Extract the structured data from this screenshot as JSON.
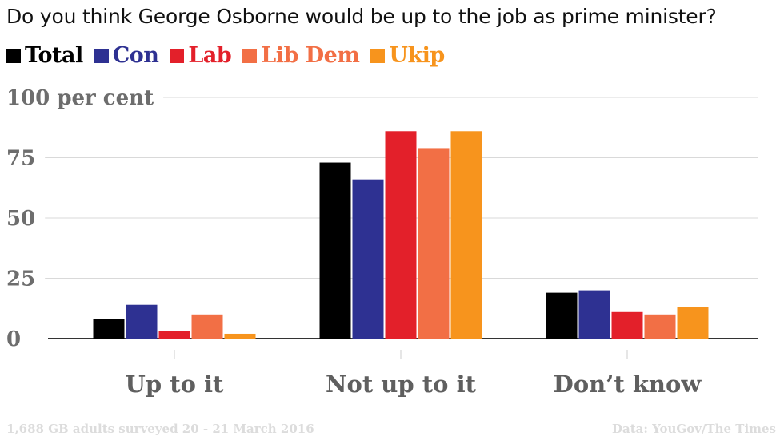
{
  "title": "Do you think George Osborne would be up to the job as prime minister?",
  "legend": [
    {
      "name": "Total",
      "color": "#000000"
    },
    {
      "name": "Con",
      "color": "#2e3192"
    },
    {
      "name": "Lab",
      "color": "#e3202a"
    },
    {
      "name": "Lib Dem",
      "color": "#f26f45"
    },
    {
      "name": "Ukip",
      "color": "#f7941d"
    }
  ],
  "chart_data": {
    "type": "bar",
    "title": "Do you think George Osborne would be up to the job as prime minister?",
    "categories": [
      "Up to it",
      "Not up to it",
      "Don’t know"
    ],
    "series": [
      {
        "name": "Total",
        "color": "#000000",
        "values": [
          8,
          73,
          19
        ]
      },
      {
        "name": "Con",
        "color": "#2e3192",
        "values": [
          14,
          66,
          20
        ]
      },
      {
        "name": "Lab",
        "color": "#e3202a",
        "values": [
          3,
          86,
          11
        ]
      },
      {
        "name": "Lib Dem",
        "color": "#f26f45",
        "values": [
          10,
          79,
          10
        ]
      },
      {
        "name": "Ukip",
        "color": "#f7941d",
        "values": [
          2,
          86,
          13
        ]
      }
    ],
    "ylim": [
      0,
      100
    ],
    "yticks": [
      {
        "value": 0,
        "label": "0"
      },
      {
        "value": 25,
        "label": "25"
      },
      {
        "value": 50,
        "label": "50"
      },
      {
        "value": 75,
        "label": "75"
      },
      {
        "value": 100,
        "label": "100 per cent"
      }
    ],
    "grid": true,
    "legend_position": "top-left",
    "xlabel": "",
    "ylabel": ""
  },
  "footer": {
    "note": "1,688 GB adults surveyed 20 - 21 March 2016",
    "source": "Data: YouGov/The Times"
  }
}
